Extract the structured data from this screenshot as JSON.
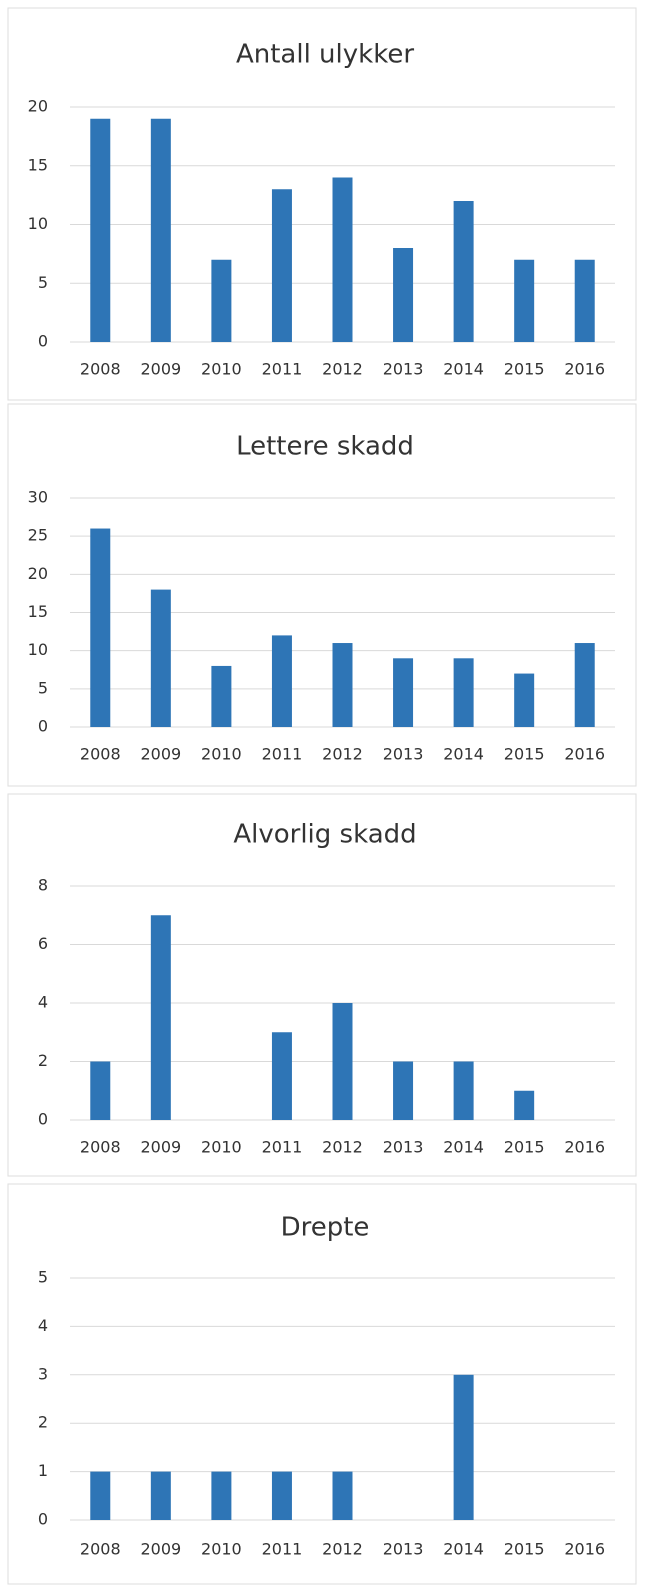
{
  "chart_data": [
    {
      "type": "bar",
      "title": "Antall ulykker",
      "categories": [
        "2008",
        "2009",
        "2010",
        "2011",
        "2012",
        "2013",
        "2014",
        "2015",
        "2016"
      ],
      "values": [
        19,
        19,
        7,
        13,
        14,
        8,
        12,
        7,
        7
      ],
      "color": "#2e75b6",
      "ylim": [
        0,
        20
      ],
      "yticks": [
        0,
        5,
        10,
        15,
        20
      ],
      "grid": true
    },
    {
      "type": "bar",
      "title": "Lettere skadd",
      "categories": [
        "2008",
        "2009",
        "2010",
        "2011",
        "2012",
        "2013",
        "2014",
        "2015",
        "2016"
      ],
      "values": [
        26,
        18,
        8,
        12,
        11,
        9,
        9,
        7,
        11
      ],
      "color": "#2e75b6",
      "ylim": [
        0,
        30
      ],
      "yticks": [
        0,
        5,
        10,
        15,
        20,
        25,
        30
      ],
      "grid": true
    },
    {
      "type": "bar",
      "title": "Alvorlig skadd",
      "categories": [
        "2008",
        "2009",
        "2010",
        "2011",
        "2012",
        "2013",
        "2014",
        "2015",
        "2016"
      ],
      "values": [
        2,
        7,
        0,
        3,
        4,
        2,
        2,
        1,
        0
      ],
      "color": "#2e75b6",
      "ylim": [
        0,
        8
      ],
      "yticks": [
        0,
        2,
        4,
        6,
        8
      ],
      "grid": true
    },
    {
      "type": "bar",
      "title": "Drepte",
      "categories": [
        "2008",
        "2009",
        "2010",
        "2011",
        "2012",
        "2013",
        "2014",
        "2015",
        "2016"
      ],
      "values": [
        1,
        1,
        1,
        1,
        1,
        0,
        3,
        0,
        0
      ],
      "color": "#2e75b6",
      "ylim": [
        0,
        5
      ],
      "yticks": [
        0,
        1,
        2,
        3,
        4,
        5
      ],
      "grid": true
    }
  ]
}
